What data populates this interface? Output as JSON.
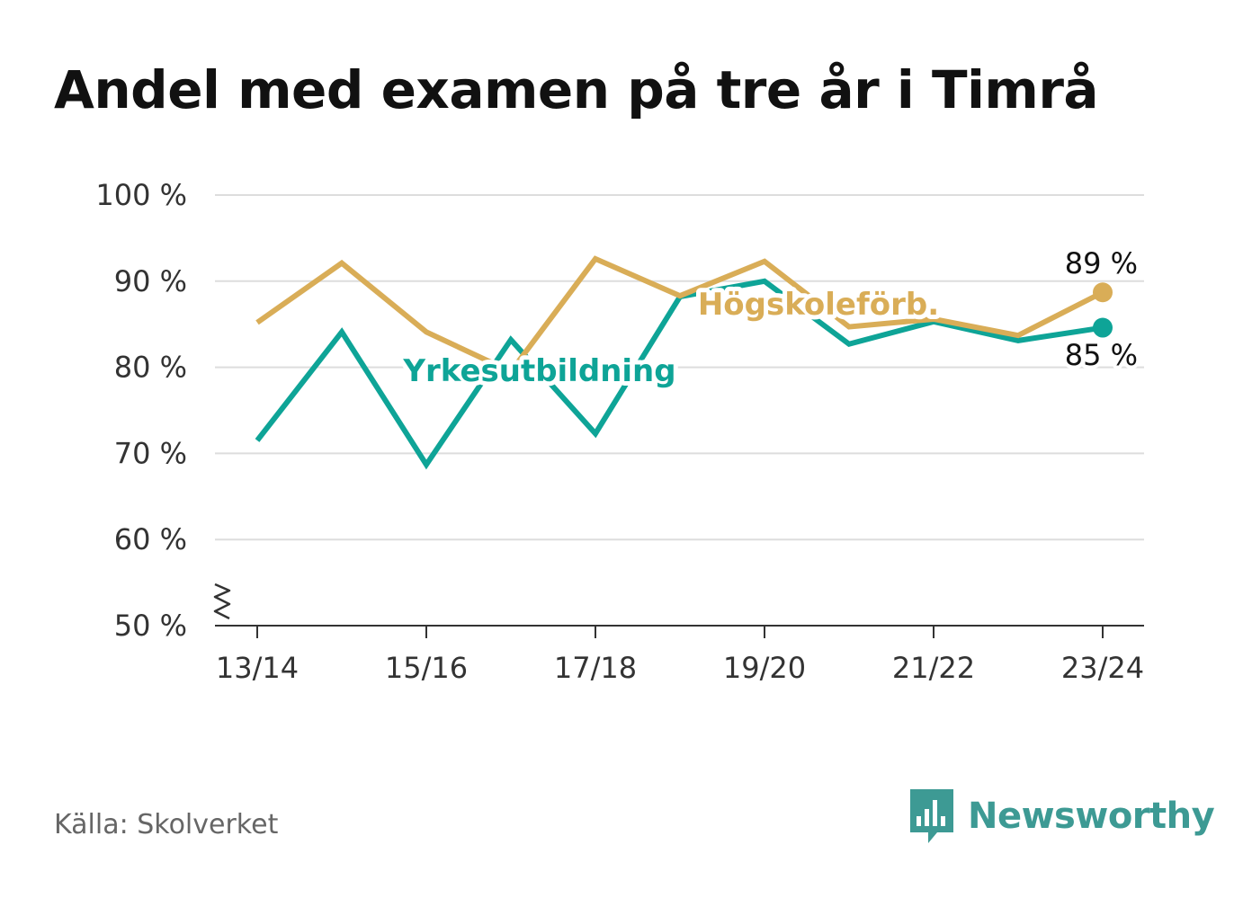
{
  "title": "Andel med examen på tre år i Timrå",
  "source": "Källa: Skolverket",
  "brand": {
    "name": "Newsworthy",
    "icon": "bar-chart-speech-bubble-icon",
    "color": "#3d9a94"
  },
  "chart_data": {
    "type": "line",
    "title": "Andel med examen på tre år i Timrå",
    "x": [
      "13/14",
      "14/15",
      "15/16",
      "16/17",
      "17/18",
      "18/19",
      "19/20",
      "20/21",
      "21/22",
      "22/23",
      "23/24"
    ],
    "x_tick_labels": [
      "13/14",
      "15/16",
      "17/18",
      "19/20",
      "21/22",
      "23/24"
    ],
    "y_ticks": [
      50,
      60,
      70,
      80,
      90,
      100
    ],
    "y_tick_labels": [
      "50 %",
      "60 %",
      "70 %",
      "80 %",
      "90 %",
      "100 %"
    ],
    "ylim": [
      50,
      100
    ],
    "y_axis_break": true,
    "grid": true,
    "legend": "inline labels",
    "series": [
      {
        "name": "Högskoleförb.",
        "color": "#d9ad57",
        "values": [
          85.2,
          92.1,
          84.1,
          79.5,
          92.6,
          88.3,
          92.3,
          84.7,
          85.6,
          83.7,
          88.7
        ],
        "end_label": "89 %"
      },
      {
        "name": "Yrkesutbildning",
        "color": "#0ea497",
        "values": [
          71.5,
          84.1,
          68.7,
          83.2,
          72.3,
          88.2,
          90.0,
          82.7,
          85.3,
          83.1,
          84.6
        ],
        "end_label": "85 %"
      }
    ]
  }
}
